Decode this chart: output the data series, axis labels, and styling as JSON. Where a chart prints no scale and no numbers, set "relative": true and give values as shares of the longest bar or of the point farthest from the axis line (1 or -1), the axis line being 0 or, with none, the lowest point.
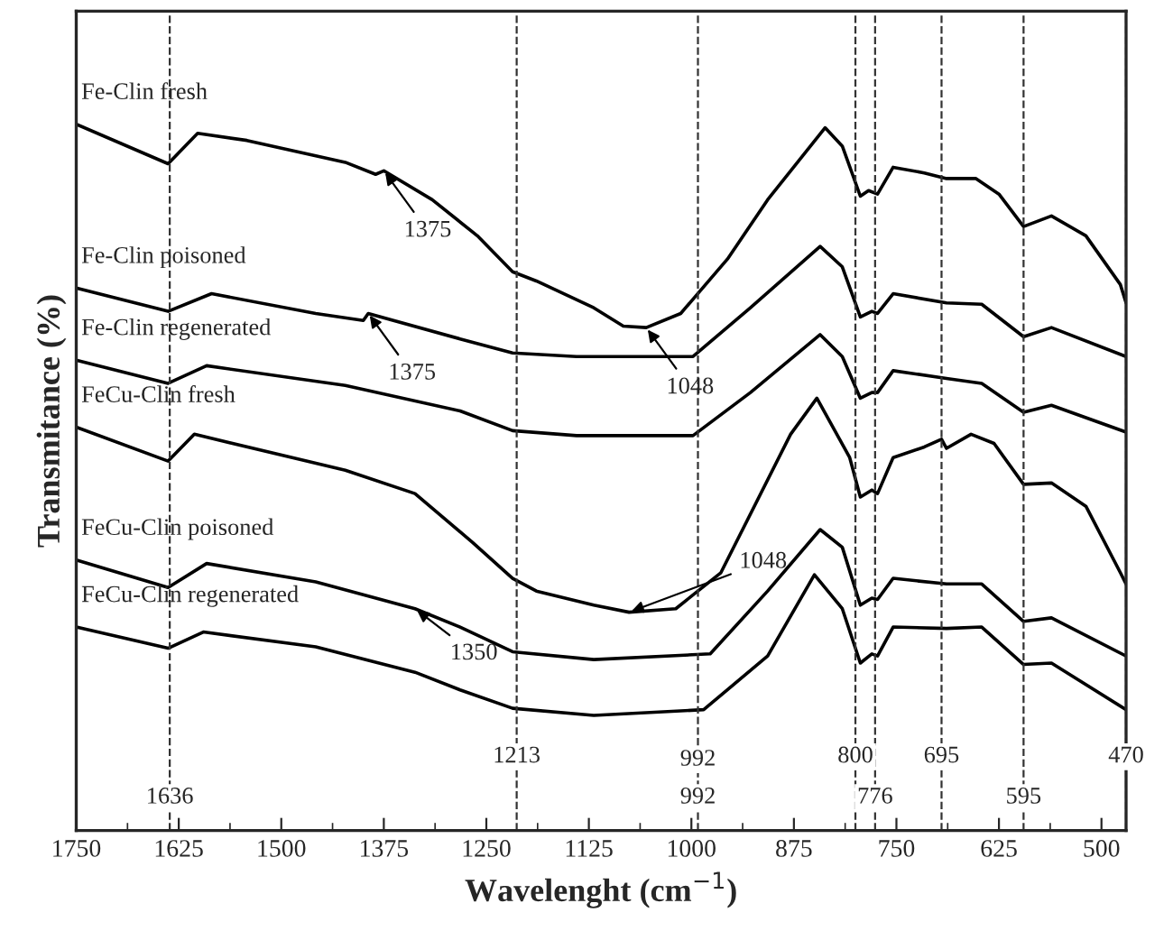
{
  "chart_data": {
    "type": "line",
    "relative": true,
    "xlabel": "Wavelenght (cm$^{−1}$)",
    "ylabel": "Transmitance (%)",
    "xlim": [
      1750,
      470
    ],
    "xticks": [
      1750,
      1625,
      1500,
      1375,
      1250,
      1125,
      1000,
      875,
      750,
      625,
      500
    ],
    "legend": false,
    "grid": false,
    "marker": "none",
    "line_style": "solid",
    "series": [
      {
        "name": "Fe-Clin fresh",
        "color": "#000000",
        "x": [
          1750,
          1638,
          1602,
          1542,
          1422,
          1385,
          1375,
          1316,
          1261,
          1218,
          1189,
          1119,
          1083,
          1055,
          1013,
          956,
          907,
          837,
          816,
          794,
          784,
          773,
          754,
          716,
          689,
          653,
          625,
          595,
          561,
          519,
          477,
          470
        ],
        "values": [
          1.0,
          0.944,
          0.987,
          0.977,
          0.946,
          0.929,
          0.934,
          0.893,
          0.842,
          0.791,
          0.778,
          0.74,
          0.714,
          0.712,
          0.732,
          0.809,
          0.893,
          0.995,
          0.969,
          0.898,
          0.906,
          0.901,
          0.939,
          0.931,
          0.923,
          0.923,
          0.901,
          0.855,
          0.87,
          0.842,
          0.773,
          0.747
        ]
      },
      {
        "name": "Fe-Clin poisoned",
        "color": "#000000",
        "x": [
          1750,
          1638,
          1585,
          1458,
          1400,
          1394,
          1282,
          1218,
          1140,
          998,
          928,
          843,
          816,
          794,
          780,
          773,
          754,
          689,
          646,
          595,
          561,
          470
        ],
        "values": [
          0.768,
          0.735,
          0.76,
          0.732,
          0.722,
          0.732,
          0.696,
          0.676,
          0.671,
          0.671,
          0.74,
          0.827,
          0.798,
          0.727,
          0.735,
          0.732,
          0.76,
          0.747,
          0.745,
          0.699,
          0.712,
          0.671
        ]
      },
      {
        "name": "Fe-Clin regenerated",
        "color": "#000000",
        "x": [
          1750,
          1638,
          1591,
          1422,
          1282,
          1218,
          1140,
          998,
          928,
          843,
          816,
          794,
          780,
          773,
          754,
          689,
          646,
          595,
          561,
          470
        ],
        "values": [
          0.666,
          0.633,
          0.658,
          0.63,
          0.594,
          0.566,
          0.559,
          0.559,
          0.62,
          0.702,
          0.671,
          0.612,
          0.62,
          0.62,
          0.651,
          0.64,
          0.633,
          0.592,
          0.602,
          0.564
        ]
      },
      {
        "name": "FeCu-Clin fresh",
        "color": "#000000",
        "x": [
          1750,
          1638,
          1606,
          1422,
          1337,
          1267,
          1218,
          1189,
          1119,
          1076,
          1019,
          964,
          879,
          847,
          807,
          794,
          780,
          773,
          754,
          716,
          695,
          689,
          659,
          631,
          595,
          561,
          519,
          477,
          470
        ],
        "values": [
          0.571,
          0.523,
          0.561,
          0.51,
          0.477,
          0.408,
          0.357,
          0.339,
          0.319,
          0.309,
          0.314,
          0.365,
          0.561,
          0.612,
          0.528,
          0.472,
          0.482,
          0.477,
          0.528,
          0.543,
          0.554,
          0.541,
          0.561,
          0.548,
          0.49,
          0.492,
          0.459,
          0.365,
          0.349
        ]
      },
      {
        "name": "FeCu-Clin poisoned",
        "color": "#000000",
        "x": [
          1750,
          1638,
          1591,
          1458,
          1337,
          1282,
          1218,
          1119,
          977,
          907,
          843,
          816,
          794,
          780,
          773,
          754,
          689,
          646,
          595,
          561,
          470
        ],
        "values": [
          0.383,
          0.344,
          0.378,
          0.352,
          0.314,
          0.288,
          0.253,
          0.242,
          0.25,
          0.339,
          0.426,
          0.401,
          0.319,
          0.329,
          0.327,
          0.357,
          0.349,
          0.349,
          0.296,
          0.301,
          0.247
        ]
      },
      {
        "name": "FeCu-Clin regenerated",
        "color": "#000000",
        "x": [
          1750,
          1638,
          1595,
          1458,
          1337,
          1282,
          1218,
          1119,
          985,
          907,
          850,
          816,
          794,
          780,
          773,
          754,
          689,
          646,
          595,
          561,
          470
        ],
        "values": [
          0.288,
          0.258,
          0.281,
          0.26,
          0.224,
          0.199,
          0.173,
          0.163,
          0.171,
          0.247,
          0.362,
          0.314,
          0.237,
          0.25,
          0.247,
          0.288,
          0.286,
          0.288,
          0.235,
          0.237,
          0.171
        ]
      }
    ],
    "ref_lines": [
      {
        "axis": "x",
        "value": 1636,
        "label": "1636",
        "line_style": "dashed"
      },
      {
        "axis": "x",
        "value": 1213,
        "label": "1213",
        "line_style": "dashed"
      },
      {
        "axis": "x",
        "value": 992,
        "label": "992",
        "line_style": "dashed"
      },
      {
        "axis": "x",
        "value": 800,
        "label": "800",
        "line_style": "dashed"
      },
      {
        "axis": "x",
        "value": 776,
        "label": "776",
        "line_style": "dashed"
      },
      {
        "axis": "x",
        "value": 695,
        "label": "695",
        "line_style": "dashed"
      },
      {
        "axis": "x",
        "value": 595,
        "label": "595",
        "line_style": "dashed"
      },
      {
        "axis": "x",
        "value": 470,
        "label": "470",
        "line_style": "dashed"
      }
    ],
    "annotations": [
      {
        "text": "1375",
        "x": 1375,
        "y": 0.934
      },
      {
        "text": "1048",
        "x": 1055,
        "y": 0.712
      },
      {
        "text": "1375",
        "x": 1394,
        "y": 0.732
      },
      {
        "text": "1350",
        "x": 1337,
        "y": 0.314
      },
      {
        "text": "1048",
        "x": 1076,
        "y": 0.309
      },
      {
        "text": "992",
        "x": 992,
        "y": 0.1
      }
    ]
  }
}
